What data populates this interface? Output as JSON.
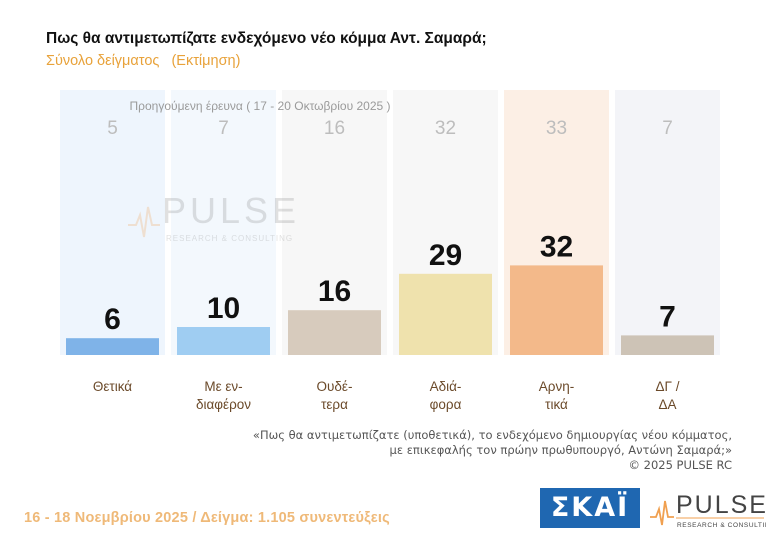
{
  "header": {
    "title": "Πως θα αντιμετωπίζατε ενδεχόμενο νέο κόμμα Αντ. Σαμαρά;",
    "subtitle": "Σύνολο δείγματος   (Εκτίμηση)"
  },
  "chart_data": {
    "type": "bar",
    "categories": [
      [
        "Θετικά"
      ],
      [
        "Με εν-",
        "διαφέρον"
      ],
      [
        "Ουδέ-",
        "τερα"
      ],
      [
        "Αδιά-",
        "φορα"
      ],
      [
        "Αρνη-",
        "τικά"
      ],
      [
        "ΔΓ /",
        "ΔΑ"
      ]
    ],
    "series": [
      {
        "name": "",
        "values": [
          6,
          10,
          16,
          29,
          32,
          7
        ]
      },
      {
        "name": "Προηγούμενη έρευνα ( 17 - 20 Οκτωβρίου 2025 )",
        "values": [
          5,
          7,
          16,
          32,
          33,
          7
        ]
      }
    ],
    "ylim": [
      0,
      40
    ],
    "colors": {
      "bars": [
        "#7fb3e8",
        "#9fcdf2",
        "#d7cbbd",
        "#efe2ad",
        "#f3b98a",
        "#cdc3b6"
      ],
      "bands": [
        "#eef5fd",
        "#f3f8fd",
        "#f7f7f7",
        "#f7f7f7",
        "#fcefe5",
        "#f3f4f8"
      ]
    }
  },
  "note": {
    "line1": "«Πως θα αντιμετωπίζατε (υποθετικά), το ενδεχόμενο δημιουργίας νέου κόμματος,",
    "line2": "με επικεφαλής τον πρώην πρωθυπουργό, Αντώνη Σαμαρά;»",
    "copyright": "©  2025  PULSE RC"
  },
  "footer": "16 - 18 Νοεμβρίου 2025  /  Δείγμα:  1.105 συνεντεύξεις",
  "logos": {
    "skai": "ΣΚΑΪ",
    "pulse": "PULSE",
    "pulse_tagline": "RESEARCH & CONSULTING"
  }
}
